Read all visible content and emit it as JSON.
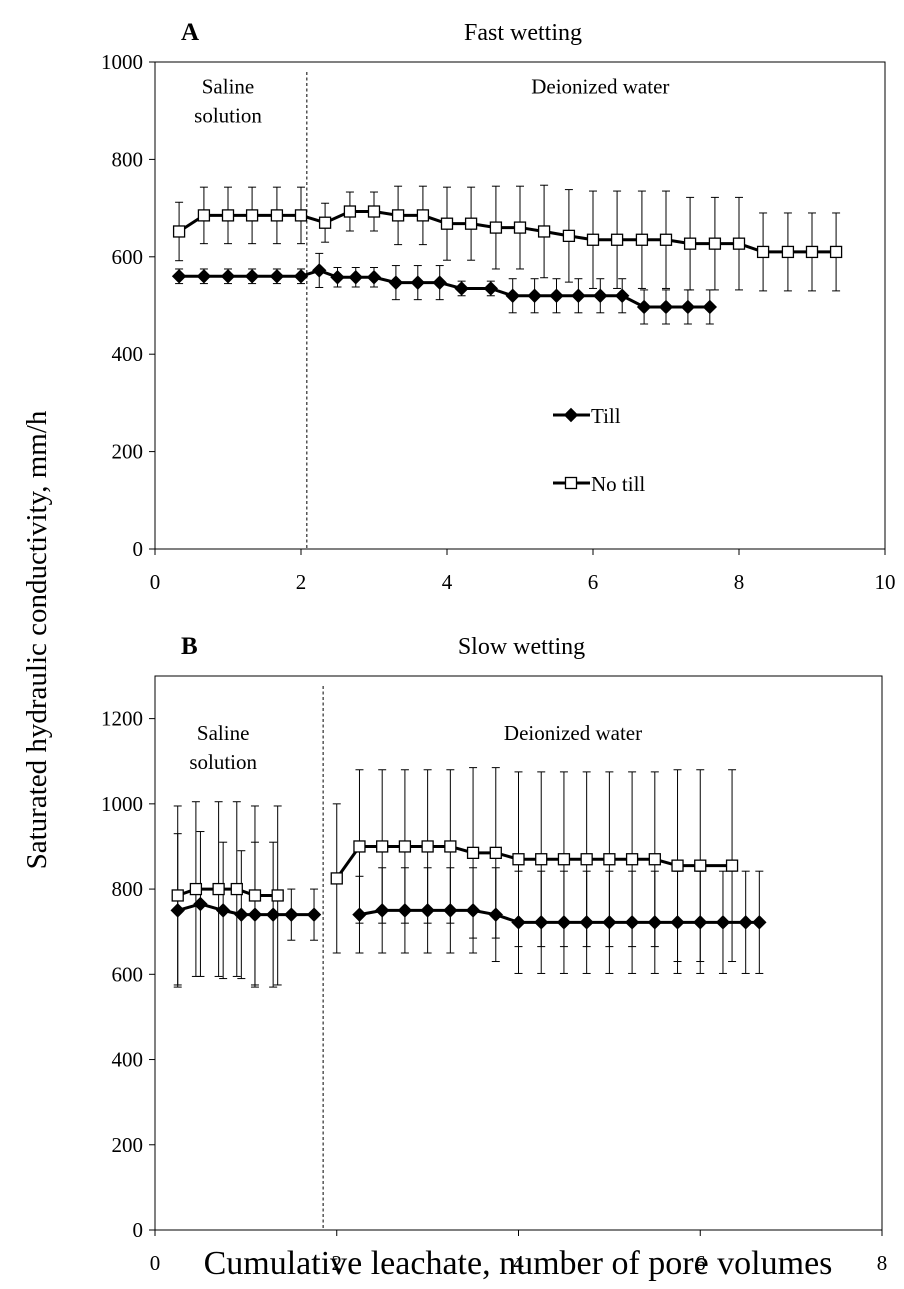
{
  "figure": {
    "ylabel": "Saturated hydraulic conductivity, mm/h",
    "xlabel": "Cumulative leachate, number of pore volumes"
  },
  "chart_data": [
    {
      "type": "line",
      "panel": "A",
      "title": "Fast wetting",
      "xlim": [
        0,
        10
      ],
      "ylim": [
        0,
        1000
      ],
      "xticks": [
        "0",
        "2",
        "4",
        "6",
        "8",
        "10"
      ],
      "yticks": [
        "0",
        "200",
        "400",
        "600",
        "800",
        "1000"
      ],
      "grid": false,
      "legend_position": "center",
      "divider_x": 2.08,
      "regions": [
        {
          "lines": [
            "Saline",
            "solution"
          ],
          "x": 1.0,
          "y": 935
        },
        {
          "lines": [
            "Deionized water"
          ],
          "x": 6.1,
          "y": 935
        }
      ],
      "series": [
        {
          "name": "Till",
          "marker": "filled-diamond",
          "x": [
            0.33,
            0.67,
            1.0,
            1.33,
            1.67,
            2.0,
            2.25,
            2.5,
            2.75,
            3.0,
            3.3,
            3.6,
            3.9,
            4.2,
            4.6,
            4.9,
            5.2,
            5.5,
            5.8,
            6.1,
            6.4,
            6.7,
            7.0,
            7.3,
            7.6
          ],
          "y": [
            560,
            560,
            560,
            560,
            560,
            560,
            572,
            558,
            558,
            558,
            547,
            547,
            547,
            535,
            535,
            520,
            520,
            520,
            520,
            520,
            520,
            497,
            497,
            497,
            497
          ],
          "error": [
            15,
            15,
            15,
            15,
            15,
            15,
            35,
            20,
            20,
            20,
            35,
            35,
            35,
            15,
            15,
            35,
            35,
            35,
            35,
            35,
            35,
            35,
            35,
            35,
            35
          ]
        },
        {
          "name": "No till",
          "marker": "open-square",
          "x": [
            0.33,
            0.67,
            1.0,
            1.33,
            1.67,
            2.0,
            2.33,
            2.67,
            3.0,
            3.33,
            3.67,
            4.0,
            4.33,
            4.67,
            5.0,
            5.33,
            5.67,
            6.0,
            6.33,
            6.67,
            7.0,
            7.33,
            7.67,
            8.0,
            8.33,
            8.67,
            9.0,
            9.33
          ],
          "y": [
            652,
            685,
            685,
            685,
            685,
            685,
            670,
            693,
            693,
            685,
            685,
            668,
            668,
            660,
            660,
            652,
            643,
            635,
            635,
            635,
            635,
            627,
            627,
            627,
            610,
            610,
            610,
            610
          ],
          "error": [
            60,
            58,
            58,
            58,
            58,
            58,
            40,
            40,
            40,
            60,
            60,
            75,
            75,
            85,
            85,
            95,
            95,
            100,
            100,
            100,
            100,
            95,
            95,
            95,
            80,
            80,
            80,
            80
          ]
        }
      ]
    },
    {
      "type": "line",
      "panel": "B",
      "title": "Slow wetting",
      "xlim": [
        0,
        8
      ],
      "ylim": [
        0,
        1300
      ],
      "xticks": [
        "0",
        "2",
        "4",
        "6",
        "8"
      ],
      "yticks": [
        "0",
        "200",
        "400",
        "600",
        "800",
        "1000",
        "1200"
      ],
      "grid": false,
      "divider_x": 1.85,
      "regions": [
        {
          "lines": [
            "Saline",
            "solution"
          ],
          "x": 0.75,
          "y": 1150
        },
        {
          "lines": [
            "Deionized water"
          ],
          "x": 4.6,
          "y": 1150
        }
      ],
      "series": [
        {
          "name": "Till",
          "marker": "filled-diamond",
          "x": [
            0.25,
            0.5,
            0.75,
            0.95,
            1.1,
            1.3,
            1.5,
            1.75,
            2.25,
            2.5,
            2.75,
            3.0,
            3.25,
            3.5,
            3.75,
            4.0,
            4.25,
            4.5,
            4.75,
            5.0,
            5.25,
            5.5,
            5.75,
            6.0,
            6.25,
            6.5,
            6.65
          ],
          "y": [
            750,
            765,
            750,
            740,
            740,
            740,
            740,
            740,
            740,
            750,
            750,
            750,
            750,
            750,
            740,
            722,
            722,
            722,
            722,
            722,
            722,
            722,
            722,
            722,
            722,
            722,
            722
          ],
          "error": [
            180,
            170,
            160,
            150,
            170,
            170,
            60,
            60,
            90,
            100,
            100,
            100,
            100,
            100,
            110,
            120,
            120,
            120,
            120,
            120,
            120,
            120,
            120,
            120,
            120,
            120,
            120
          ]
        },
        {
          "name": "No till",
          "marker": "open-square",
          "x": [
            0.25,
            0.45,
            0.7,
            0.9,
            1.1,
            1.35,
            2.0,
            2.25,
            2.5,
            2.75,
            3.0,
            3.25,
            3.5,
            3.75,
            4.0,
            4.25,
            4.5,
            4.75,
            5.0,
            5.25,
            5.5,
            5.75,
            6.0,
            6.35
          ],
          "y": [
            785,
            800,
            800,
            800,
            785,
            785,
            825,
            900,
            900,
            900,
            900,
            900,
            885,
            885,
            870,
            870,
            870,
            870,
            870,
            870,
            870,
            855,
            855,
            855
          ],
          "error": [
            210,
            205,
            205,
            205,
            210,
            210,
            175,
            180,
            180,
            180,
            180,
            180,
            200,
            200,
            205,
            205,
            205,
            205,
            205,
            205,
            205,
            225,
            225,
            225
          ]
        }
      ]
    }
  ]
}
